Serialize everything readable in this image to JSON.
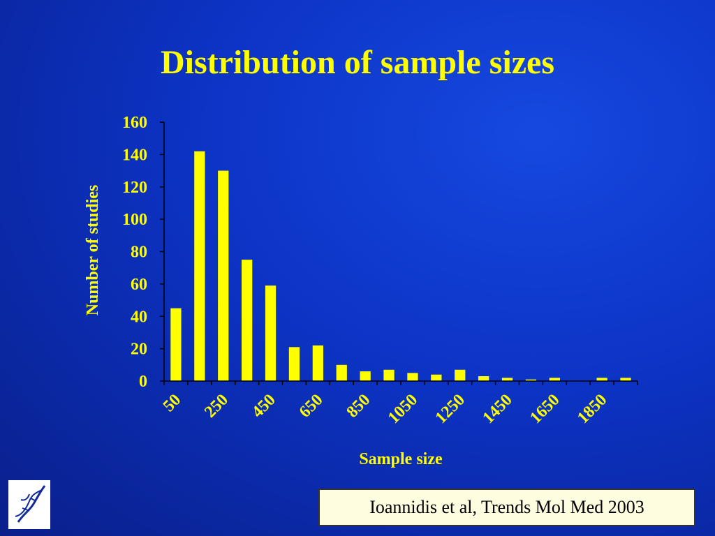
{
  "slide": {
    "title": "Distribution of sample sizes",
    "citation": "Ioannidis et al, Trends Mol Med 2003"
  },
  "colors": {
    "background": "#0c33c4",
    "accent": "#ffff00"
  },
  "logo": {
    "icon": "dna-helix-icon"
  },
  "chart_data": {
    "type": "bar",
    "x": [
      50,
      150,
      250,
      350,
      450,
      550,
      650,
      750,
      850,
      950,
      1050,
      1150,
      1250,
      1350,
      1450,
      1550,
      1650,
      1750,
      1850,
      1950
    ],
    "values": [
      45,
      142,
      130,
      75,
      59,
      21,
      22,
      10,
      6,
      7,
      5,
      4,
      7,
      3,
      2,
      1,
      2,
      0,
      2,
      2
    ],
    "xtick_labels": [
      "50",
      "250",
      "450",
      "650",
      "850",
      "1050",
      "1250",
      "1450",
      "1650",
      "1850"
    ],
    "yticks": [
      0,
      20,
      40,
      60,
      80,
      100,
      120,
      140,
      160
    ],
    "ylim": [
      0,
      160
    ],
    "xlabel": "Sample size",
    "ylabel": "Number of studies",
    "bar_color": "#ffff00",
    "grid": false
  }
}
